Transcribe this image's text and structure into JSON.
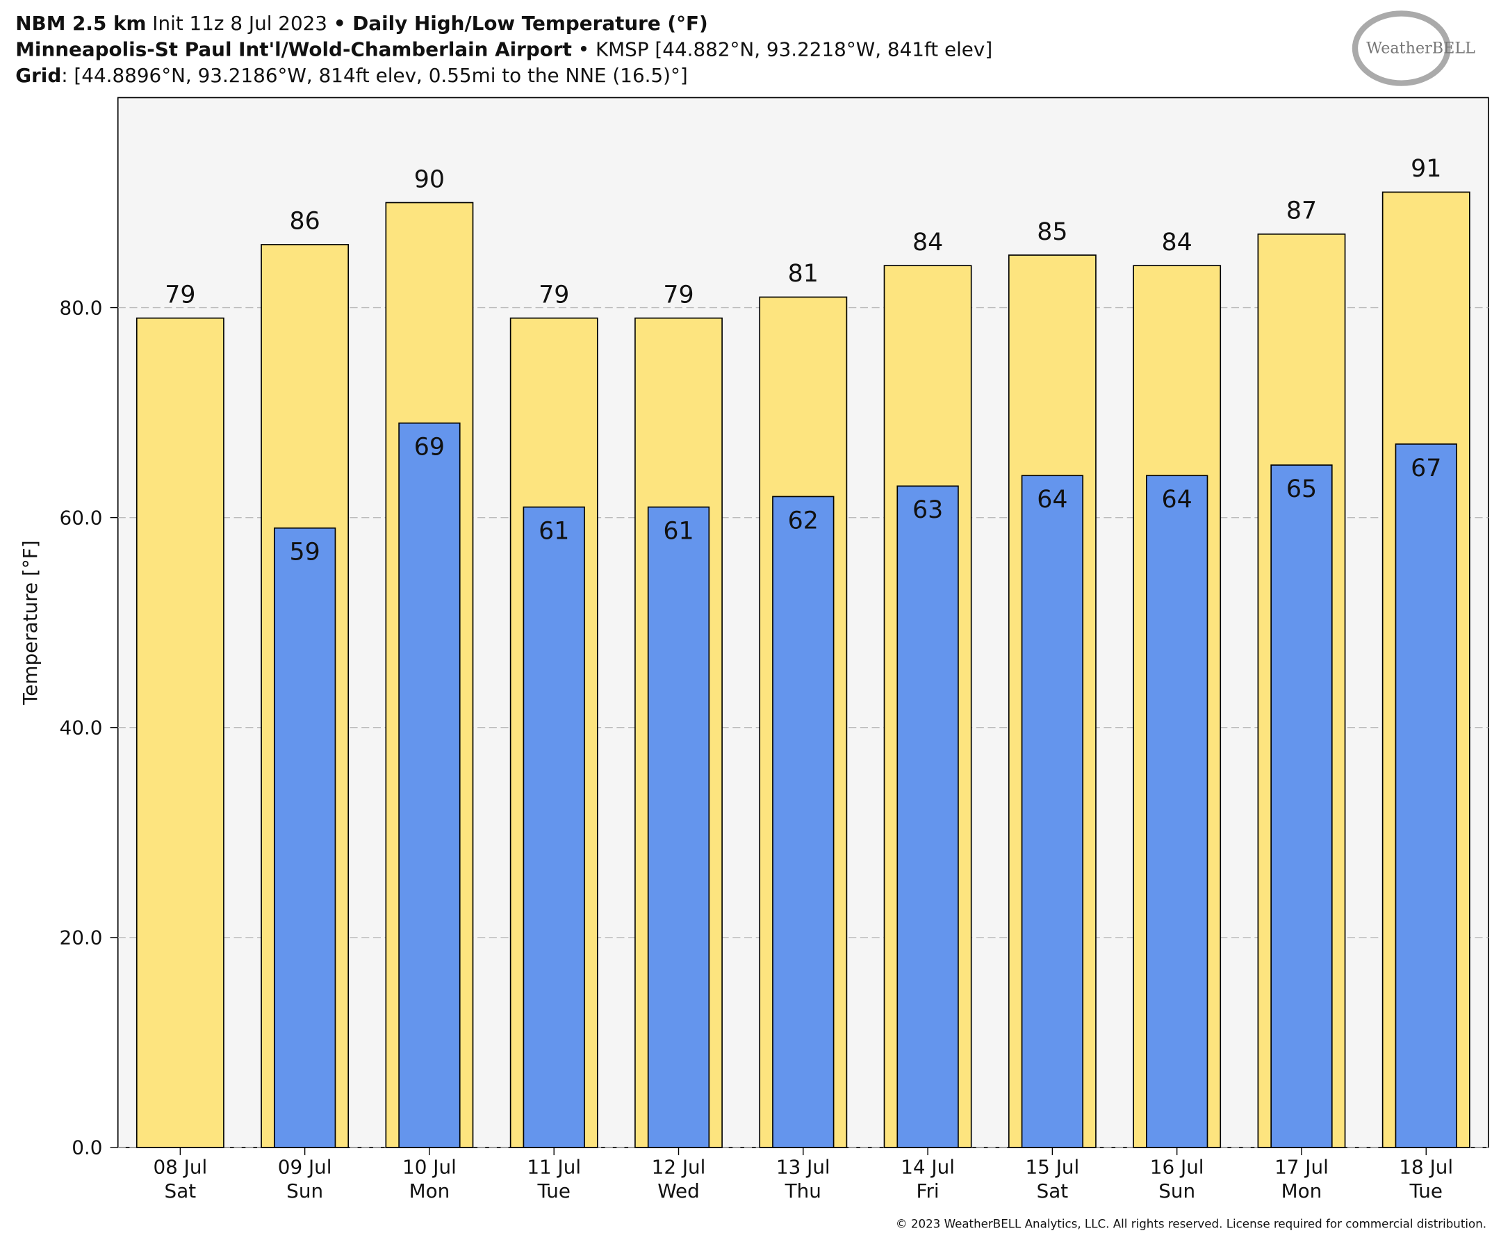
{
  "header": {
    "model": "NBM 2.5 km",
    "init": "Init 11z 8 Jul 2023",
    "product": "• Daily High/Low Temperature (°F)",
    "station": "Minneapolis-St Paul Int'l/Wold-Chamberlain Airport",
    "station_info": "• KMSP [44.882°N, 93.2218°W, 841ft elev]",
    "grid_label": "Grid",
    "grid_info": ": [44.8896°N, 93.2186°W, 814ft elev, 0.55mi to the NNE (16.5)°]",
    "logo": "WeatherBELL"
  },
  "footer": "© 2023 WeatherBELL Analytics, LLC. All rights reserved. License required for commercial distribution.",
  "chart_data": {
    "type": "bar",
    "y_label": "Temperature [°F]",
    "categories": [
      "08 Jul",
      "09 Jul",
      "10 Jul",
      "11 Jul",
      "12 Jul",
      "13 Jul",
      "14 Jul",
      "15 Jul",
      "16 Jul",
      "17 Jul",
      "18 Jul"
    ],
    "weekdays": [
      "Sat",
      "Sun",
      "Mon",
      "Tue",
      "Wed",
      "Thu",
      "Fri",
      "Sat",
      "Sun",
      "Mon",
      "Tue"
    ],
    "series": [
      {
        "name": "High",
        "color": "#fde47f",
        "values": [
          79,
          86,
          90,
          79,
          79,
          81,
          84,
          85,
          84,
          87,
          91
        ]
      },
      {
        "name": "Low",
        "color": "#6495ed",
        "values": [
          null,
          59,
          69,
          61,
          61,
          62,
          63,
          64,
          64,
          65,
          67
        ]
      }
    ],
    "ylim": [
      0,
      100
    ],
    "yticks": [
      {
        "value": 0,
        "label": "0.0"
      },
      {
        "value": 20,
        "label": "20.0"
      },
      {
        "value": 40,
        "label": "40.0"
      },
      {
        "value": 60,
        "label": "60.0"
      },
      {
        "value": 80,
        "label": "80.0"
      }
    ],
    "grid": true
  }
}
